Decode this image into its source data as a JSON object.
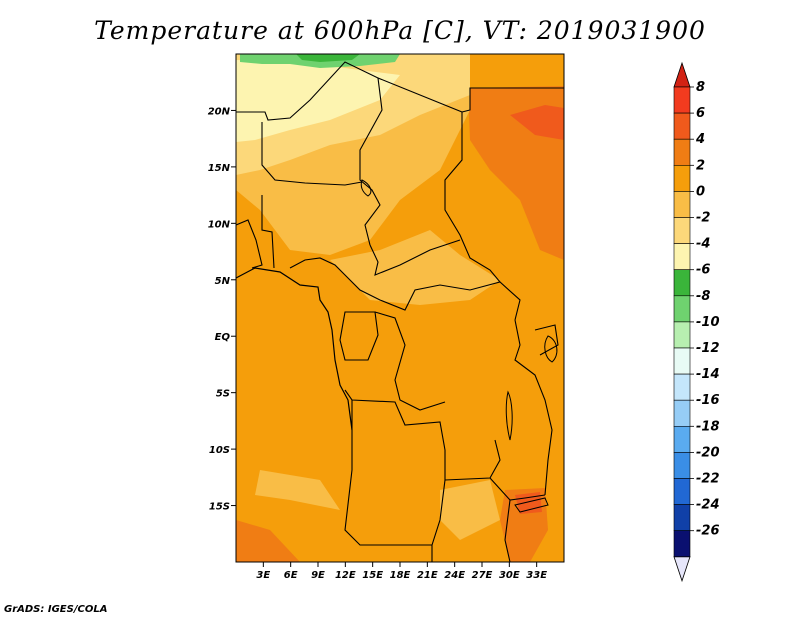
{
  "title": "Temperature at 600hPa [C], VT: 2019031900",
  "credit": "GrADS: IGES/COLA",
  "map": {
    "lon_range": [
      0,
      36
    ],
    "lat_range": [
      -20,
      25
    ],
    "lat_ticks": [
      {
        "lat": 20,
        "label": "20N"
      },
      {
        "lat": 15,
        "label": "15N"
      },
      {
        "lat": 10,
        "label": "10N"
      },
      {
        "lat": 5,
        "label": "5N"
      },
      {
        "lat": 0,
        "label": "EQ"
      },
      {
        "lat": -5,
        "label": "5S"
      },
      {
        "lat": -10,
        "label": "10S"
      },
      {
        "lat": -15,
        "label": "15S"
      }
    ],
    "lon_ticks": [
      {
        "lon": 3,
        "label": "3E"
      },
      {
        "lon": 6,
        "label": "6E"
      },
      {
        "lon": 9,
        "label": "9E"
      },
      {
        "lon": 12,
        "label": "12E"
      },
      {
        "lon": 15,
        "label": "15E"
      },
      {
        "lon": 18,
        "label": "18E"
      },
      {
        "lon": 21,
        "label": "21E"
      },
      {
        "lon": 24,
        "label": "24E"
      },
      {
        "lon": 27,
        "label": "27E"
      },
      {
        "lon": 30,
        "label": "30E"
      },
      {
        "lon": 33,
        "label": "33E"
      }
    ]
  },
  "colorbar": {
    "levels": [
      "8",
      "6",
      "4",
      "2",
      "0",
      "-2",
      "-4",
      "-6",
      "-8",
      "-10",
      "-12",
      "-14",
      "-16",
      "-18",
      "-20",
      "-22",
      "-24",
      "-26"
    ],
    "colors_top_to_bottom": [
      "#f23b1f",
      "#f05a1c",
      "#f07d14",
      "#f59e0b",
      "#f9bd46",
      "#fcd87a",
      "#fdf4b0",
      "#3ab53a",
      "#6fd26f",
      "#b7efb0",
      "#e8fbf5",
      "#c4e6fb",
      "#96cdf6",
      "#5aabf0",
      "#3a8ee6",
      "#2168d4",
      "#1040a8",
      "#0a1070"
    ],
    "top_triangle_color": "#d22214",
    "bottom_triangle_color": "#e6e6fa"
  }
}
